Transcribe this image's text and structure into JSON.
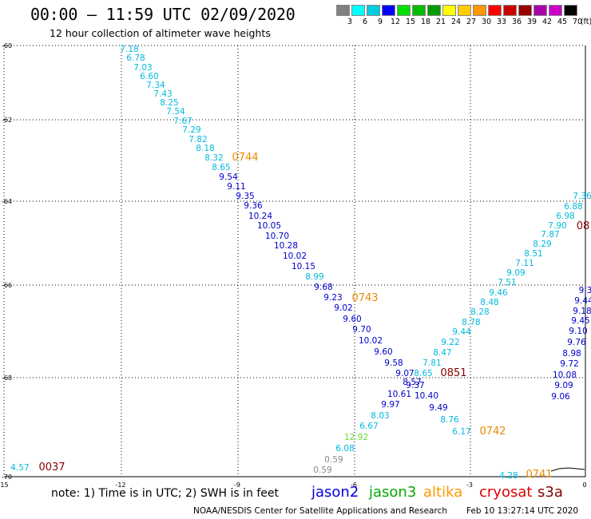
{
  "title": "00:00 – 11:59 UTC 02/09/2020",
  "subtitle": "12 hour collection of altimeter wave heights",
  "legend": {
    "unit": "(ft)",
    "ticks": [
      "3",
      "6",
      "9",
      "12",
      "15",
      "18",
      "21",
      "24",
      "27",
      "30",
      "33",
      "36",
      "39",
      "42",
      "45",
      "70"
    ],
    "colors": [
      "#808080",
      "#00ffff",
      "#00ccdd",
      "#0000ff",
      "#00dd00",
      "#00bb00",
      "#009900",
      "#ffff00",
      "#ffcc00",
      "#ff9900",
      "#ff0000",
      "#cc0000",
      "#990000",
      "#aa00aa",
      "#cc00cc",
      "#000000"
    ]
  },
  "axes": {
    "lat_labels": [
      "-60",
      "-62",
      "-64",
      "-66",
      "-68",
      "-70"
    ],
    "lon_labels": [
      "-15",
      "-12",
      "-9",
      "-6",
      "-3",
      "0"
    ]
  },
  "passes": [
    {
      "name": "pass-a",
      "color": "#00bbdd",
      "points": [
        "7.18",
        "6.78",
        "7.03",
        "6.60",
        "7.34",
        "7.43",
        "8.25",
        "7.54",
        "7.67",
        "7.29",
        "7.82",
        "8.18",
        "8.32",
        "8.65"
      ]
    },
    {
      "name": "pass-a-blue",
      "color": "#0000cc",
      "points": [
        "9.54",
        "9.11",
        "9.35",
        "9.36",
        "10.24",
        "10.05",
        "10.70",
        "10.28",
        "10.02",
        "10.15"
      ]
    },
    {
      "name": "pass-a-cont",
      "color": "#00bbdd",
      "points": [
        "8.99"
      ]
    },
    {
      "name": "pass-a-end",
      "color": "#0000cc",
      "points": [
        "9.68",
        "9.23",
        "9.02",
        "9.60",
        "9.70",
        "10.02",
        "9.60",
        "9.58",
        "9.07",
        "8.57",
        "9.37",
        "10.61",
        "10.40",
        "9.97",
        "9.49"
      ]
    },
    {
      "name": "pass-b",
      "color": "#00bbdd",
      "points": [
        "8.03",
        "6.67",
        "8.76",
        "6.17",
        "6.08"
      ]
    },
    {
      "name": "pass-b-green",
      "color": "#66dd33",
      "points": [
        "12.92"
      ]
    },
    {
      "name": "pass-b-gray",
      "color": "#888888",
      "points": [
        "0.59",
        "0.59"
      ]
    },
    {
      "name": "pass-c",
      "color": "#00bbdd",
      "points": [
        "7.81",
        "8.65",
        "8.47",
        "9.22",
        "9.44",
        "8.78",
        "8.28",
        "8.48",
        "9.46",
        "7.51",
        "9.09",
        "7.11",
        "8.51",
        "8.29",
        "7.87",
        "7.90",
        "6.98",
        "6.88",
        "7.36"
      ]
    },
    {
      "name": "pass-d",
      "color": "#0000cc",
      "points": [
        "9.06",
        "9.09",
        "10.08",
        "9.72",
        "8.98",
        "9.76",
        "9.10",
        "9.45",
        "9.18",
        "9.44",
        "9.3"
      ]
    },
    {
      "name": "misc",
      "color": "#00bbdd",
      "points": [
        "4.57",
        "4.28"
      ]
    }
  ],
  "times": [
    {
      "label": "0744",
      "color": "#ee8800"
    },
    {
      "label": "0743",
      "color": "#ee8800"
    },
    {
      "label": "0851",
      "color": "#880000"
    },
    {
      "label": "0742",
      "color": "#ee8800"
    },
    {
      "label": "0741",
      "color": "#ee8800"
    },
    {
      "label": "0037",
      "color": "#880000"
    },
    {
      "label": "08",
      "color": "#880000"
    }
  ],
  "note": "note: 1) Time is in UTC; 2) SWH is in feet",
  "satellites": [
    {
      "label": "jason2",
      "color": "#0000dd"
    },
    {
      "label": "jason3",
      "color": "#00aa00"
    },
    {
      "label": "altika",
      "color": "#ff9900"
    },
    {
      "label": "cryosat",
      "color": "#dd0000"
    },
    {
      "label": "s3a",
      "color": "#880000"
    }
  ],
  "footer_left": "NOAA/NESDIS Center for Satellite Applications and Research",
  "footer_right": "Feb 10 13:27:14 UTC 2020"
}
